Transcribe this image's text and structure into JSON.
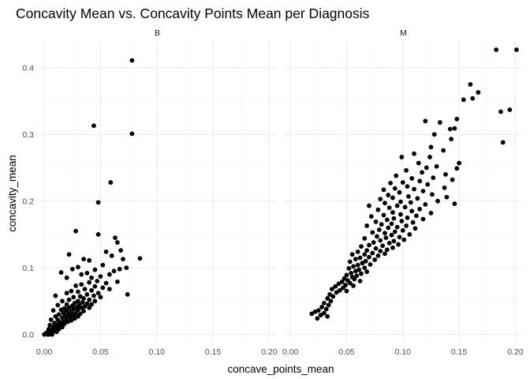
{
  "chart_data": {
    "type": "scatter",
    "title": "Concavity Mean vs. Concavity Points Mean per Diagnosis",
    "xlabel": "concave_points_mean",
    "ylabel": "concavity_mean",
    "xlim": [
      -0.005,
      0.206
    ],
    "ylim": [
      -0.01,
      0.44
    ],
    "x_ticks": [
      0.0,
      0.05,
      0.1,
      0.15,
      0.2
    ],
    "x_tick_labels": [
      "0.00",
      "0.05",
      "0.10",
      "0.15",
      "0.20"
    ],
    "y_ticks": [
      0.0,
      0.1,
      0.2,
      0.3,
      0.4
    ],
    "y_tick_labels": [
      "0.0",
      "0.1",
      "0.2",
      "0.3",
      "0.4"
    ],
    "grid": true,
    "legend": "none",
    "facets": [
      {
        "label": "B",
        "points": [
          [
            0.078,
            0.411
          ],
          [
            0.044,
            0.313
          ],
          [
            0.078,
            0.301
          ],
          [
            0.059,
            0.228
          ],
          [
            0.048,
            0.198
          ],
          [
            0.028,
            0.155
          ],
          [
            0.048,
            0.15
          ],
          [
            0.063,
            0.145
          ],
          [
            0.065,
            0.138
          ],
          [
            0.068,
            0.126
          ],
          [
            0.055,
            0.124
          ],
          [
            0.06,
            0.118
          ],
          [
            0.085,
            0.114
          ],
          [
            0.07,
            0.113
          ],
          [
            0.04,
            0.111
          ],
          [
            0.035,
            0.113
          ],
          [
            0.022,
            0.12
          ],
          [
            0.052,
            0.104
          ],
          [
            0.073,
            0.1
          ],
          [
            0.067,
            0.098
          ],
          [
            0.062,
            0.095
          ],
          [
            0.045,
            0.097
          ],
          [
            0.03,
            0.101
          ],
          [
            0.025,
            0.098
          ],
          [
            0.038,
            0.092
          ],
          [
            0.033,
            0.09
          ],
          [
            0.015,
            0.093
          ],
          [
            0.058,
            0.09
          ],
          [
            0.05,
            0.087
          ],
          [
            0.042,
            0.085
          ],
          [
            0.02,
            0.085
          ],
          [
            0.047,
            0.08
          ],
          [
            0.04,
            0.078
          ],
          [
            0.055,
            0.077
          ],
          [
            0.065,
            0.079
          ],
          [
            0.033,
            0.075
          ],
          [
            0.045,
            0.072
          ],
          [
            0.028,
            0.073
          ],
          [
            0.052,
            0.07
          ],
          [
            0.058,
            0.068
          ],
          [
            0.036,
            0.068
          ],
          [
            0.042,
            0.066
          ],
          [
            0.03,
            0.064
          ],
          [
            0.024,
            0.065
          ],
          [
            0.048,
            0.062
          ],
          [
            0.02,
            0.062
          ],
          [
            0.074,
            0.06
          ],
          [
            0.038,
            0.06
          ],
          [
            0.044,
            0.058
          ],
          [
            0.032,
            0.057
          ],
          [
            0.01,
            0.058
          ],
          [
            0.026,
            0.056
          ],
          [
            0.05,
            0.056
          ],
          [
            0.035,
            0.054
          ],
          [
            0.04,
            0.052
          ],
          [
            0.022,
            0.052
          ],
          [
            0.03,
            0.05
          ],
          [
            0.045,
            0.05
          ],
          [
            0.016,
            0.05
          ],
          [
            0.034,
            0.048
          ],
          [
            0.027,
            0.047
          ],
          [
            0.038,
            0.046
          ],
          [
            0.02,
            0.045
          ],
          [
            0.042,
            0.045
          ],
          [
            0.031,
            0.044
          ],
          [
            0.025,
            0.043
          ],
          [
            0.012,
            0.044
          ],
          [
            0.036,
            0.042
          ],
          [
            0.029,
            0.041
          ],
          [
            0.022,
            0.04
          ],
          [
            0.018,
            0.039
          ],
          [
            0.033,
            0.04
          ],
          [
            0.04,
            0.04
          ],
          [
            0.026,
            0.038
          ],
          [
            0.015,
            0.037
          ],
          [
            0.03,
            0.037
          ],
          [
            0.02,
            0.035
          ],
          [
            0.035,
            0.035
          ],
          [
            0.024,
            0.034
          ],
          [
            0.008,
            0.036
          ],
          [
            0.028,
            0.032
          ],
          [
            0.017,
            0.032
          ],
          [
            0.032,
            0.031
          ],
          [
            0.022,
            0.03
          ],
          [
            0.013,
            0.03
          ],
          [
            0.026,
            0.029
          ],
          [
            0.019,
            0.028
          ],
          [
            0.03,
            0.027
          ],
          [
            0.01,
            0.027
          ],
          [
            0.023,
            0.026
          ],
          [
            0.016,
            0.025
          ],
          [
            0.027,
            0.024
          ],
          [
            0.02,
            0.023
          ],
          [
            0.012,
            0.022
          ],
          [
            0.024,
            0.021
          ],
          [
            0.006,
            0.022
          ],
          [
            0.017,
            0.02
          ],
          [
            0.021,
            0.019
          ],
          [
            0.014,
            0.018
          ],
          [
            0.009,
            0.017
          ],
          [
            0.018,
            0.016
          ],
          [
            0.011,
            0.015
          ],
          [
            0.015,
            0.014
          ],
          [
            0.005,
            0.014
          ],
          [
            0.012,
            0.012
          ],
          [
            0.008,
            0.011
          ],
          [
            0.016,
            0.011
          ],
          [
            0.01,
            0.009
          ],
          [
            0.004,
            0.008
          ],
          [
            0.013,
            0.008
          ],
          [
            0.007,
            0.006
          ],
          [
            0.009,
            0.005
          ],
          [
            0.003,
            0.004
          ],
          [
            0.011,
            0.004
          ],
          [
            0.006,
            0.003
          ],
          [
            0.002,
            0.002
          ],
          [
            0.005,
            0.001
          ],
          [
            0.001,
            0.001
          ],
          [
            0.003,
            0.0
          ],
          [
            0.0,
            0.0
          ],
          [
            0.007,
            0.0
          ],
          [
            0.004,
            0.0
          ]
        ]
      },
      {
        "label": "M",
        "points": [
          [
            0.183,
            0.427
          ],
          [
            0.201,
            0.427
          ],
          [
            0.16,
            0.375
          ],
          [
            0.167,
            0.363
          ],
          [
            0.162,
            0.354
          ],
          [
            0.154,
            0.352
          ],
          [
            0.195,
            0.337
          ],
          [
            0.187,
            0.334
          ],
          [
            0.148,
            0.323
          ],
          [
            0.12,
            0.32
          ],
          [
            0.133,
            0.318
          ],
          [
            0.146,
            0.309
          ],
          [
            0.142,
            0.308
          ],
          [
            0.128,
            0.3
          ],
          [
            0.143,
            0.293
          ],
          [
            0.189,
            0.288
          ],
          [
            0.125,
            0.281
          ],
          [
            0.136,
            0.276
          ],
          [
            0.11,
            0.271
          ],
          [
            0.124,
            0.266
          ],
          [
            0.099,
            0.266
          ],
          [
            0.114,
            0.257
          ],
          [
            0.15,
            0.257
          ],
          [
            0.13,
            0.252
          ],
          [
            0.121,
            0.25
          ],
          [
            0.148,
            0.249
          ],
          [
            0.103,
            0.246
          ],
          [
            0.117,
            0.243
          ],
          [
            0.138,
            0.24
          ],
          [
            0.094,
            0.238
          ],
          [
            0.127,
            0.235
          ],
          [
            0.108,
            0.234
          ],
          [
            0.144,
            0.232
          ],
          [
            0.115,
            0.23
          ],
          [
            0.1,
            0.228
          ],
          [
            0.089,
            0.227
          ],
          [
            0.122,
            0.225
          ],
          [
            0.104,
            0.222
          ],
          [
            0.137,
            0.22
          ],
          [
            0.093,
            0.219
          ],
          [
            0.11,
            0.218
          ],
          [
            0.083,
            0.217
          ],
          [
            0.118,
            0.215
          ],
          [
            0.097,
            0.213
          ],
          [
            0.126,
            0.21
          ],
          [
            0.087,
            0.209
          ],
          [
            0.105,
            0.207
          ],
          [
            0.139,
            0.206
          ],
          [
            0.091,
            0.205
          ],
          [
            0.113,
            0.204
          ],
          [
            0.08,
            0.203
          ],
          [
            0.131,
            0.2
          ],
          [
            0.098,
            0.199
          ],
          [
            0.107,
            0.198
          ],
          [
            0.084,
            0.197
          ],
          [
            0.146,
            0.196
          ],
          [
            0.12,
            0.195
          ],
          [
            0.095,
            0.193
          ],
          [
            0.07,
            0.193
          ],
          [
            0.102,
            0.191
          ],
          [
            0.088,
            0.19
          ],
          [
            0.115,
            0.188
          ],
          [
            0.078,
            0.187
          ],
          [
            0.108,
            0.185
          ],
          [
            0.091,
            0.183
          ],
          [
            0.125,
            0.182
          ],
          [
            0.098,
            0.18
          ],
          [
            0.083,
            0.179
          ],
          [
            0.112,
            0.178
          ],
          [
            0.072,
            0.177
          ],
          [
            0.104,
            0.175
          ],
          [
            0.092,
            0.174
          ],
          [
            0.118,
            0.173
          ],
          [
            0.086,
            0.172
          ],
          [
            0.099,
            0.17
          ],
          [
            0.076,
            0.169
          ],
          [
            0.109,
            0.168
          ],
          [
            0.09,
            0.166
          ],
          [
            0.081,
            0.165
          ],
          [
            0.103,
            0.163
          ],
          [
            0.068,
            0.163
          ],
          [
            0.095,
            0.161
          ],
          [
            0.087,
            0.16
          ],
          [
            0.111,
            0.159
          ],
          [
            0.079,
            0.157
          ],
          [
            0.1,
            0.156
          ],
          [
            0.093,
            0.154
          ],
          [
            0.073,
            0.153
          ],
          [
            0.084,
            0.152
          ],
          [
            0.106,
            0.15
          ],
          [
            0.09,
            0.149
          ],
          [
            0.077,
            0.147
          ],
          [
            0.097,
            0.146
          ],
          [
            0.085,
            0.145
          ],
          [
            0.066,
            0.144
          ],
          [
            0.101,
            0.142
          ],
          [
            0.08,
            0.141
          ],
          [
            0.092,
            0.14
          ],
          [
            0.074,
            0.138
          ],
          [
            0.088,
            0.137
          ],
          [
            0.096,
            0.135
          ],
          [
            0.07,
            0.134
          ],
          [
            0.082,
            0.133
          ],
          [
            0.063,
            0.132
          ],
          [
            0.091,
            0.13
          ],
          [
            0.076,
            0.129
          ],
          [
            0.086,
            0.127
          ],
          [
            0.068,
            0.126
          ],
          [
            0.08,
            0.125
          ],
          [
            0.06,
            0.124
          ],
          [
            0.073,
            0.122
          ],
          [
            0.084,
            0.121
          ],
          [
            0.066,
            0.12
          ],
          [
            0.055,
            0.12
          ],
          [
            0.078,
            0.118
          ],
          [
            0.07,
            0.116
          ],
          [
            0.062,
            0.115
          ],
          [
            0.058,
            0.113
          ],
          [
            0.075,
            0.112
          ],
          [
            0.067,
            0.11
          ],
          [
            0.053,
            0.109
          ],
          [
            0.064,
            0.107
          ],
          [
            0.071,
            0.105
          ],
          [
            0.06,
            0.104
          ],
          [
            0.056,
            0.102
          ],
          [
            0.066,
            0.1
          ],
          [
            0.052,
            0.099
          ],
          [
            0.061,
            0.097
          ],
          [
            0.058,
            0.095
          ],
          [
            0.068,
            0.094
          ],
          [
            0.054,
            0.092
          ],
          [
            0.063,
            0.091
          ],
          [
            0.05,
            0.089
          ],
          [
            0.059,
            0.088
          ],
          [
            0.055,
            0.086
          ],
          [
            0.048,
            0.084
          ],
          [
            0.057,
            0.083
          ],
          [
            0.051,
            0.081
          ],
          [
            0.062,
            0.08
          ],
          [
            0.046,
            0.079
          ],
          [
            0.053,
            0.077
          ],
          [
            0.043,
            0.076
          ],
          [
            0.049,
            0.074
          ],
          [
            0.056,
            0.073
          ],
          [
            0.04,
            0.072
          ],
          [
            0.047,
            0.07
          ],
          [
            0.037,
            0.068
          ],
          [
            0.044,
            0.066
          ],
          [
            0.05,
            0.065
          ],
          [
            0.041,
            0.063
          ],
          [
            0.035,
            0.06
          ],
          [
            0.038,
            0.057
          ],
          [
            0.033,
            0.054
          ],
          [
            0.036,
            0.05
          ],
          [
            0.03,
            0.047
          ],
          [
            0.034,
            0.044
          ],
          [
            0.028,
            0.041
          ],
          [
            0.032,
            0.038
          ],
          [
            0.025,
            0.036
          ],
          [
            0.022,
            0.034
          ],
          [
            0.03,
            0.032
          ],
          [
            0.019,
            0.031
          ],
          [
            0.027,
            0.029
          ],
          [
            0.033,
            0.027
          ],
          [
            0.024,
            0.024
          ]
        ]
      }
    ]
  }
}
